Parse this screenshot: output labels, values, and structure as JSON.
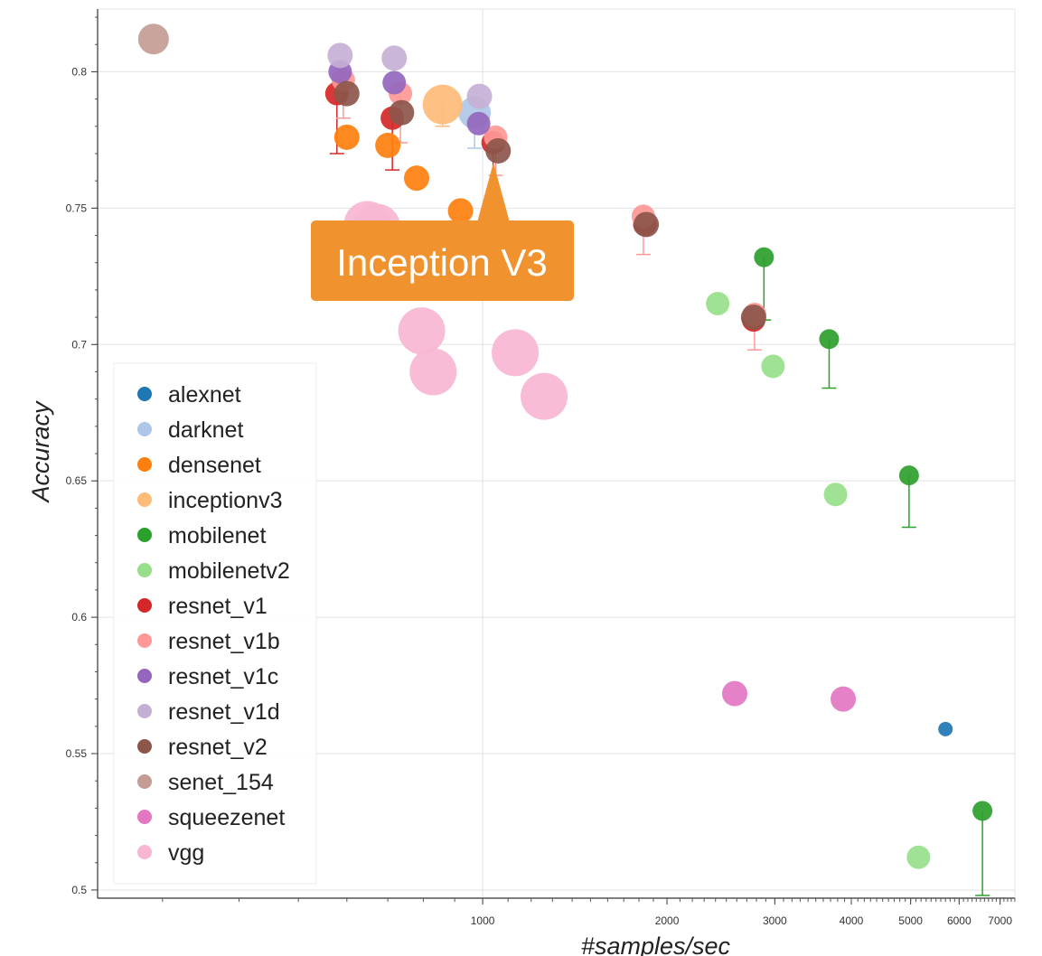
{
  "chart_data": {
    "type": "scatter",
    "xlabel": "#samples/sec",
    "ylabel": "Accuracy",
    "x_scale": "log",
    "xlim": [
      235,
      7400
    ],
    "ylim": [
      0.497,
      0.823
    ],
    "grid": true,
    "legend_position": "left",
    "x_ticks": [
      {
        "value": 1000,
        "label": "1000"
      },
      {
        "value": 2000,
        "label": "2000"
      },
      {
        "value": 3000,
        "label": "3000"
      },
      {
        "value": 4000,
        "label": "4000"
      },
      {
        "value": 5000,
        "label": "5000"
      },
      {
        "value": 6000,
        "label": "6000"
      },
      {
        "value": 7000,
        "label": "7000"
      }
    ],
    "y_ticks": [
      {
        "value": 0.5,
        "label": "0.5"
      },
      {
        "value": 0.55,
        "label": "0.55"
      },
      {
        "value": 0.6,
        "label": "0.6"
      },
      {
        "value": 0.65,
        "label": "0.65"
      },
      {
        "value": 0.7,
        "label": "0.7"
      },
      {
        "value": 0.75,
        "label": "0.75"
      },
      {
        "value": 0.8,
        "label": "0.8"
      }
    ],
    "annotation": {
      "text": "Inception V3"
    },
    "series": [
      {
        "name": "alexnet",
        "color": "#1f77b4",
        "points": [
          {
            "x": 5700,
            "y": 0.559
          }
        ]
      },
      {
        "name": "darknet",
        "color": "#aec7e8",
        "points": [
          {
            "x": 970,
            "y": 0.785
          }
        ]
      },
      {
        "name": "densenet",
        "color": "#ff7f0e",
        "points": [
          {
            "x": 600,
            "y": 0.776
          },
          {
            "x": 700,
            "y": 0.773
          },
          {
            "x": 780,
            "y": 0.761
          },
          {
            "x": 920,
            "y": 0.749
          }
        ]
      },
      {
        "name": "inceptionv3",
        "color": "#ffbb78",
        "points": [
          {
            "x": 860,
            "y": 0.788
          }
        ]
      },
      {
        "name": "mobilenet",
        "color": "#2ca02c",
        "points": [
          {
            "x": 2880,
            "y": 0.732
          },
          {
            "x": 3680,
            "y": 0.702
          },
          {
            "x": 4970,
            "y": 0.652
          },
          {
            "x": 6550,
            "y": 0.529
          }
        ]
      },
      {
        "name": "mobilenetv2",
        "color": "#98df8a",
        "points": [
          {
            "x": 2420,
            "y": 0.715
          },
          {
            "x": 2980,
            "y": 0.692
          },
          {
            "x": 3770,
            "y": 0.645
          },
          {
            "x": 5150,
            "y": 0.512
          }
        ]
      },
      {
        "name": "resnet_v1",
        "color": "#d62728",
        "points": [
          {
            "x": 578,
            "y": 0.792
          },
          {
            "x": 712,
            "y": 0.783
          },
          {
            "x": 1040,
            "y": 0.774
          },
          {
            "x": 1840,
            "y": 0.744
          },
          {
            "x": 2770,
            "y": 0.709
          }
        ]
      },
      {
        "name": "resnet_v1b",
        "color": "#ff9896",
        "points": [
          {
            "x": 592,
            "y": 0.797
          },
          {
            "x": 734,
            "y": 0.792
          },
          {
            "x": 1050,
            "y": 0.776
          },
          {
            "x": 1830,
            "y": 0.747
          },
          {
            "x": 2780,
            "y": 0.711
          }
        ]
      },
      {
        "name": "resnet_v1c",
        "color": "#9467bd",
        "points": [
          {
            "x": 585,
            "y": 0.8
          },
          {
            "x": 717,
            "y": 0.796
          },
          {
            "x": 985,
            "y": 0.781
          }
        ]
      },
      {
        "name": "resnet_v1d",
        "color": "#c5b0d5",
        "points": [
          {
            "x": 585,
            "y": 0.806
          },
          {
            "x": 717,
            "y": 0.805
          },
          {
            "x": 988,
            "y": 0.791
          }
        ]
      },
      {
        "name": "resnet_v2",
        "color": "#8c564b",
        "points": [
          {
            "x": 600,
            "y": 0.792
          },
          {
            "x": 737,
            "y": 0.785
          },
          {
            "x": 1060,
            "y": 0.771
          },
          {
            "x": 1850,
            "y": 0.744
          },
          {
            "x": 2770,
            "y": 0.71
          }
        ]
      },
      {
        "name": "senet_154",
        "color": "#c49c94",
        "points": [
          {
            "x": 290,
            "y": 0.812
          }
        ]
      },
      {
        "name": "squeezenet",
        "color": "#e377c2",
        "points": [
          {
            "x": 2580,
            "y": 0.572
          },
          {
            "x": 3880,
            "y": 0.57
          }
        ]
      },
      {
        "name": "vgg",
        "color": "#f7b6d2",
        "points": [
          {
            "x": 648,
            "y": 0.744
          },
          {
            "x": 672,
            "y": 0.743
          },
          {
            "x": 795,
            "y": 0.705
          },
          {
            "x": 830,
            "y": 0.69
          },
          {
            "x": 1130,
            "y": 0.697
          },
          {
            "x": 1260,
            "y": 0.681
          }
        ]
      }
    ]
  }
}
